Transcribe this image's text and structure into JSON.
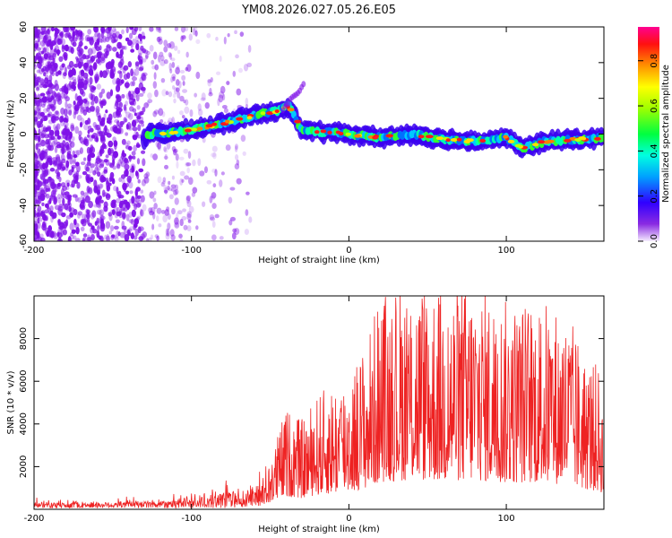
{
  "title": "YM08.2026.027.05.26.E05",
  "chart_data": [
    {
      "type": "heatmap",
      "xlabel": "Height of straight line (km)",
      "ylabel": "Frequency (Hz)",
      "xlim": [
        -200,
        162
      ],
      "ylim": [
        -60,
        60
      ],
      "xticks": [
        -200,
        -100,
        0,
        100
      ],
      "yticks": [
        60,
        40,
        20,
        0,
        -20,
        -40,
        -60
      ],
      "colorbar": {
        "label": "Normalized spectral amplitude",
        "range": [
          0.0,
          0.95
        ],
        "ticks": [
          0.0,
          0.2,
          0.4,
          0.6,
          0.8
        ]
      },
      "ridge": [
        {
          "x": -128,
          "f": 0
        },
        {
          "x": -110,
          "f": 1
        },
        {
          "x": -90,
          "f": 4
        },
        {
          "x": -70,
          "f": 8
        },
        {
          "x": -58,
          "f": 11
        },
        {
          "x": -45,
          "f": 13
        },
        {
          "x": -38,
          "f": 16
        },
        {
          "x": -30,
          "f": 2
        },
        {
          "x": -15,
          "f": 1
        },
        {
          "x": 0,
          "f": 0
        },
        {
          "x": 20,
          "f": -2
        },
        {
          "x": 40,
          "f": 0
        },
        {
          "x": 60,
          "f": -3
        },
        {
          "x": 80,
          "f": -4
        },
        {
          "x": 100,
          "f": -2
        },
        {
          "x": 110,
          "f": -8
        },
        {
          "x": 125,
          "f": -4
        },
        {
          "x": 145,
          "f": -3
        },
        {
          "x": 162,
          "f": -2
        }
      ],
      "noise_region": {
        "x": [
          -200,
          -65
        ],
        "f": [
          -60,
          60
        ]
      }
    },
    {
      "type": "line",
      "xlabel": "Height of straight line (km)",
      "ylabel": "SNR (10 * v/v)",
      "xlim": [
        -200,
        162
      ],
      "ylim": [
        0,
        10000
      ],
      "xticks": [
        -200,
        -100,
        0,
        100
      ],
      "yticks": [
        2000,
        4000,
        6000,
        8000
      ],
      "series": [
        {
          "name": "SNR",
          "color": "#ee2222",
          "envelope_x": [
            -200,
            -150,
            -120,
            -100,
            -80,
            -60,
            -50,
            -40,
            -30,
            -20,
            -10,
            0,
            10,
            20,
            40,
            60,
            80,
            100,
            120,
            140,
            150,
            160,
            162
          ],
          "envelope_y": [
            300,
            350,
            450,
            600,
            900,
            1100,
            2000,
            4000,
            3500,
            4500,
            5000,
            5500,
            6500,
            8500,
            9200,
            8800,
            9000,
            8200,
            8400,
            7600,
            6200,
            5500,
            3500
          ]
        }
      ]
    }
  ],
  "colors": {
    "line": "#ee2222",
    "noise": "#7f10e8"
  }
}
